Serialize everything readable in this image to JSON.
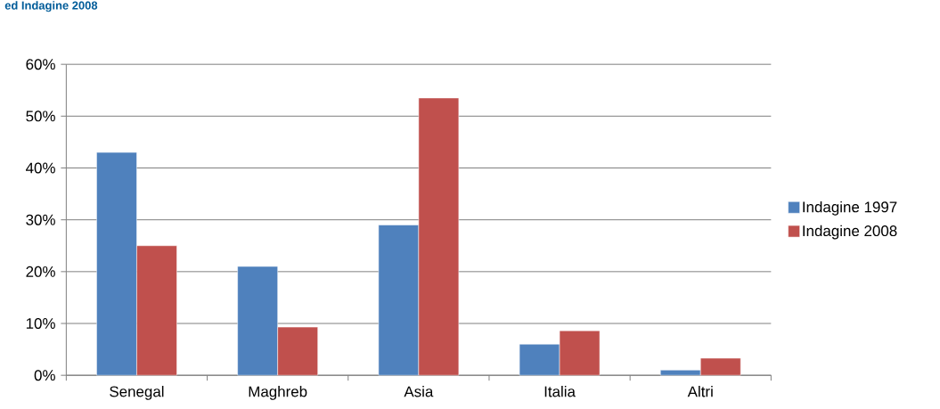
{
  "chart_data": {
    "type": "bar",
    "title": "ed Indagine 2008",
    "categories": [
      "Senegal",
      "Maghreb",
      "Asia",
      "Italia",
      "Altri"
    ],
    "series": [
      {
        "name": "Indagine 1997",
        "color": "#4f81bd",
        "values": [
          43,
          21,
          29,
          6,
          1
        ]
      },
      {
        "name": "Indagine 2008",
        "color": "#c0504d",
        "values": [
          25,
          9.3,
          53.5,
          8.6,
          3.3
        ]
      }
    ],
    "ylim": [
      0,
      60
    ],
    "yticks": [
      {
        "value": 0,
        "label": "0%"
      },
      {
        "value": 10,
        "label": "10%"
      },
      {
        "value": 20,
        "label": "20%"
      },
      {
        "value": 30,
        "label": "30%"
      },
      {
        "value": 40,
        "label": "40%"
      },
      {
        "value": 50,
        "label": "50%"
      },
      {
        "value": 60,
        "label": "60%"
      }
    ],
    "grid": "y",
    "legend": "right"
  }
}
